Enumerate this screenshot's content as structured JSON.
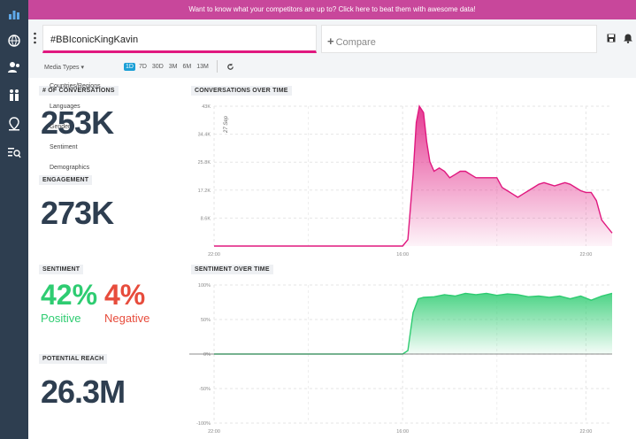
{
  "banner": {
    "text": "Want to know what your competitors are up to? Click here to beat them with awesome data!"
  },
  "search": {
    "query": "#BBIconicKingKavin"
  },
  "compare": {
    "placeholder": "Compare"
  },
  "filters": {
    "media_types_label": "Media Types",
    "ranges": [
      "1D",
      "7D",
      "30D",
      "3M",
      "6M",
      "13M"
    ],
    "active_range": "1D"
  },
  "dropdown": {
    "items": [
      "Countries/Regions",
      "Languages",
      "Gender",
      "Sentiment",
      "Demographics"
    ]
  },
  "metrics": {
    "conversations_label": "# OF CONVERSATIONS",
    "conversations_value": "253K",
    "engagement_label": "ENGAGEMENT",
    "engagement_value": "273K",
    "sentiment_label": "SENTIMENT",
    "positive_value": "42%",
    "positive_label": "Positive",
    "negative_value": "4%",
    "negative_label": "Negative",
    "reach_label": "POTENTIAL REACH",
    "reach_value": "26.3M"
  },
  "colors": {
    "sidebar": "#2e3e50",
    "banner": "#c8479b",
    "accent": "#e0187f",
    "positive": "#2ecc71",
    "negative": "#e74c3c",
    "active_range": "#1b9fd6"
  },
  "icons": {
    "sidebar": [
      "bar-chart-icon",
      "globe-icon",
      "users-icon",
      "people-icon",
      "location-icon",
      "search-list-icon"
    ],
    "toolbar": [
      "save-icon",
      "bell-icon",
      "refresh-icon",
      "kebab-icon"
    ]
  },
  "chart_data": [
    {
      "type": "area",
      "title": "CONVERSATIONS OVER TIME",
      "yticks": [
        "8.6K",
        "17.2K",
        "25.8K",
        "34.4K",
        "43K"
      ],
      "ytick_values": [
        8600,
        17200,
        25800,
        34400,
        43000
      ],
      "ylim": [
        0,
        43000
      ],
      "xticks": [
        "22:00",
        "16:00",
        "22:00"
      ],
      "xtick_values": [
        0,
        18,
        24
      ],
      "annotation": "27 Sep",
      "annotation_x": 1,
      "color": "#e0187f",
      "x": [
        0,
        1,
        2,
        4,
        6,
        8,
        10,
        12,
        14,
        16,
        18,
        18.5,
        19,
        19.3,
        19.6,
        20,
        20.3,
        20.6,
        21,
        21.5,
        22,
        22.5,
        23,
        23.5,
        24,
        24.5,
        25,
        25.5,
        26,
        26.5,
        27,
        27.5,
        28,
        28.5,
        29,
        29.5,
        30,
        30.5,
        31,
        31.5,
        32,
        32.5,
        33,
        33.5,
        34,
        34.5,
        35,
        35.5,
        36,
        36.5,
        37,
        37.5,
        38
      ],
      "values": [
        0,
        0,
        0,
        0,
        0,
        0,
        0,
        0,
        0,
        0,
        0,
        2000,
        22000,
        38000,
        43000,
        41000,
        32000,
        26000,
        23000,
        24000,
        23000,
        21000,
        22000,
        23000,
        23000,
        22000,
        21000,
        21000,
        21000,
        21000,
        21000,
        18000,
        17000,
        16000,
        15000,
        16000,
        17000,
        18000,
        19000,
        19500,
        19000,
        18500,
        19000,
        19500,
        19000,
        18000,
        17000,
        16500,
        16500,
        14000,
        8000,
        6000,
        4000
      ]
    },
    {
      "type": "area",
      "title": "SENTIMENT OVER TIME",
      "yticks": [
        "-100%",
        "-50%",
        "0%",
        "50%",
        "100%"
      ],
      "ytick_values": [
        -100,
        -50,
        0,
        50,
        100
      ],
      "ylim": [
        -100,
        100
      ],
      "xticks": [
        "22:00",
        "16:00",
        "22:00"
      ],
      "xtick_values": [
        0,
        18,
        24
      ],
      "color": "#2ecc71",
      "x": [
        0,
        1,
        2,
        4,
        6,
        8,
        10,
        12,
        14,
        16,
        18,
        18.5,
        19,
        19.5,
        20,
        21,
        22,
        23,
        24,
        25,
        26,
        27,
        28,
        29,
        30,
        31,
        32,
        33,
        34,
        35,
        36,
        37,
        38
      ],
      "values": [
        0,
        0,
        0,
        0,
        0,
        0,
        0,
        0,
        0,
        0,
        0,
        5,
        60,
        80,
        82,
        83,
        86,
        84,
        88,
        86,
        88,
        85,
        87,
        86,
        83,
        84,
        82,
        84,
        80,
        84,
        78,
        84,
        88
      ]
    }
  ]
}
